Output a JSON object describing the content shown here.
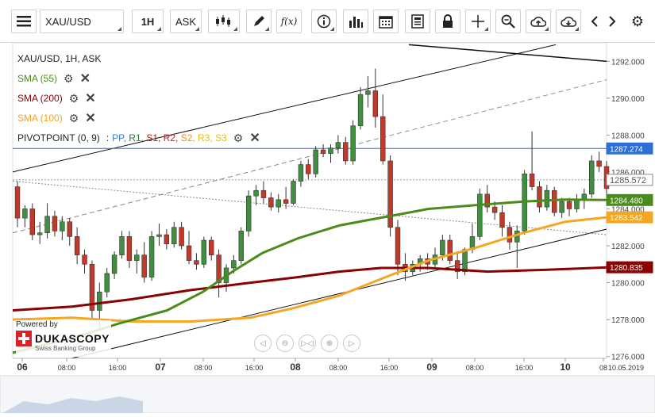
{
  "toolbar": {
    "symbol": "XAU/USD",
    "timeframe": "1H",
    "side": "ASK",
    "fx_label": "f(x)"
  },
  "legend": {
    "title": "XAU/USD, 1H, ASK",
    "sma55": "SMA (55)",
    "sma200": "SMA (200)",
    "sma100": "SMA (100)",
    "pivot": "PIVOTPOINT (0, 9)",
    "pivot_sep": ":",
    "pivot_items": [
      {
        "label": "PP,",
        "color": "#3a7bd5"
      },
      {
        "label": "R1,",
        "color": "#2e7d32"
      },
      {
        "label": "S1,",
        "color": "#8b1a1a"
      },
      {
        "label": "R2,",
        "color": "#c62828"
      },
      {
        "label": "S2,",
        "color": "#e69500"
      },
      {
        "label": "R3,",
        "color": "#e6c300"
      },
      {
        "label": "S3",
        "color": "#e6c300"
      }
    ],
    "colors": {
      "sma55": "#4a8c1c",
      "sma200": "#8b0000",
      "sma100": "#f5a623"
    }
  },
  "branding": {
    "powered_by": "Powered by",
    "name": "DUKASCOPY",
    "sub": "Swiss Banking Group"
  },
  "chart_data": {
    "type": "candlestick",
    "symbol": "XAU/USD",
    "timeframe": "1H",
    "y_ticks": [
      1276.0,
      1278.0,
      1280.0,
      1282.0,
      1284.0,
      1286.0,
      1288.0,
      1290.0,
      1292.0
    ],
    "ylim": [
      1275.9,
      1293.0
    ],
    "x_ticks": [
      "06",
      "08:00",
      "16:00",
      "07",
      "08:00",
      "16:00",
      "08",
      "08:00",
      "16:00",
      "09",
      "08:00",
      "16:00",
      "10",
      "08"
    ],
    "x_date_label": "10.05.2019",
    "price_labels": [
      {
        "value": 1287.274,
        "text": "1287.274",
        "color": "#2e6fd6"
      },
      {
        "value": 1285.572,
        "text": "1285.572",
        "color": "#8a8a8a"
      },
      {
        "value": 1284.48,
        "text": "1284.480",
        "color": "#4a8c1c"
      },
      {
        "value": 1283.542,
        "text": "1283.542",
        "color": "#f5a623"
      },
      {
        "value": 1280.835,
        "text": "1280.835",
        "color": "#8b0000"
      }
    ],
    "candles": [
      [
        1285.2,
        1285.5,
        1283.0,
        1283.5
      ],
      [
        1283.5,
        1284.2,
        1283.0,
        1284.0
      ],
      [
        1284.0,
        1284.3,
        1282.3,
        1282.6
      ],
      [
        1282.6,
        1283.3,
        1282.1,
        1282.7
      ],
      [
        1282.7,
        1284.3,
        1282.4,
        1283.6
      ],
      [
        1283.6,
        1283.9,
        1282.5,
        1282.8
      ],
      [
        1282.8,
        1283.6,
        1282.3,
        1283.3
      ],
      [
        1283.3,
        1283.5,
        1282.0,
        1282.5
      ],
      [
        1282.5,
        1283.0,
        1281.0,
        1281.5
      ],
      [
        1281.5,
        1281.8,
        1280.5,
        1281.0
      ],
      [
        1281.0,
        1281.2,
        1278.0,
        1278.5
      ],
      [
        1278.5,
        1280.0,
        1277.5,
        1279.5
      ],
      [
        1279.5,
        1280.8,
        1279.2,
        1280.5
      ],
      [
        1280.5,
        1281.7,
        1280.2,
        1281.5
      ],
      [
        1281.5,
        1282.8,
        1281.3,
        1282.5
      ],
      [
        1282.5,
        1282.8,
        1280.8,
        1281.2
      ],
      [
        1281.2,
        1281.8,
        1280.5,
        1281.5
      ],
      [
        1281.5,
        1282.2,
        1280.0,
        1280.3
      ],
      [
        1280.3,
        1282.8,
        1280.1,
        1282.5
      ],
      [
        1282.5,
        1283.2,
        1282.0,
        1282.6
      ],
      [
        1282.6,
        1282.9,
        1281.8,
        1282.1
      ],
      [
        1282.1,
        1283.3,
        1281.9,
        1283.0
      ],
      [
        1283.0,
        1283.3,
        1281.8,
        1282.0
      ],
      [
        1282.0,
        1282.8,
        1281.0,
        1281.2
      ],
      [
        1281.2,
        1281.6,
        1280.7,
        1281.0
      ],
      [
        1281.0,
        1282.5,
        1280.8,
        1282.3
      ],
      [
        1282.3,
        1282.5,
        1281.2,
        1281.5
      ],
      [
        1281.5,
        1281.8,
        1279.2,
        1280.0
      ],
      [
        1280.0,
        1281.0,
        1279.5,
        1280.8
      ],
      [
        1280.8,
        1281.5,
        1280.5,
        1281.2
      ],
      [
        1281.2,
        1283.0,
        1281.0,
        1282.8
      ],
      [
        1282.8,
        1285.0,
        1282.5,
        1284.7
      ],
      [
        1284.7,
        1285.3,
        1284.2,
        1285.0
      ],
      [
        1285.0,
        1285.5,
        1284.3,
        1284.6
      ],
      [
        1284.6,
        1284.9,
        1283.9,
        1284.1
      ],
      [
        1284.1,
        1284.8,
        1283.8,
        1284.5
      ],
      [
        1284.5,
        1285.2,
        1284.0,
        1284.3
      ],
      [
        1284.3,
        1285.6,
        1284.2,
        1285.5
      ],
      [
        1285.5,
        1286.6,
        1285.2,
        1286.4
      ],
      [
        1286.4,
        1286.7,
        1285.6,
        1285.9
      ],
      [
        1285.9,
        1287.4,
        1285.7,
        1287.2
      ],
      [
        1287.2,
        1287.5,
        1286.8,
        1287.0
      ],
      [
        1287.0,
        1287.5,
        1286.5,
        1287.3
      ],
      [
        1287.3,
        1288.0,
        1287.0,
        1287.6
      ],
      [
        1287.6,
        1287.9,
        1286.4,
        1286.6
      ],
      [
        1286.6,
        1288.8,
        1286.4,
        1288.5
      ],
      [
        1288.5,
        1290.6,
        1288.3,
        1290.2
      ],
      [
        1290.2,
        1291.2,
        1289.5,
        1290.4
      ],
      [
        1290.4,
        1291.6,
        1288.4,
        1289.0
      ],
      [
        1289.0,
        1290.2,
        1286.4,
        1286.6
      ],
      [
        1286.6,
        1286.9,
        1282.5,
        1283.0
      ],
      [
        1283.0,
        1283.4,
        1280.4,
        1281.0
      ],
      [
        1281.0,
        1281.6,
        1280.1,
        1280.6
      ],
      [
        1280.6,
        1281.2,
        1280.4,
        1281.0
      ],
      [
        1281.0,
        1281.5,
        1280.6,
        1281.3
      ],
      [
        1281.3,
        1281.6,
        1280.7,
        1281.0
      ],
      [
        1281.0,
        1281.9,
        1280.8,
        1281.5
      ],
      [
        1281.5,
        1282.6,
        1281.2,
        1282.3
      ],
      [
        1282.3,
        1282.6,
        1281.0,
        1281.2
      ],
      [
        1281.2,
        1281.7,
        1280.2,
        1280.6
      ],
      [
        1280.6,
        1281.9,
        1280.4,
        1281.8
      ],
      [
        1281.8,
        1283.2,
        1281.6,
        1282.5
      ],
      [
        1282.5,
        1285.1,
        1282.3,
        1284.8
      ],
      [
        1284.8,
        1285.3,
        1283.8,
        1284.1
      ],
      [
        1284.1,
        1284.4,
        1283.4,
        1283.8
      ],
      [
        1283.8,
        1284.2,
        1282.5,
        1283.0
      ],
      [
        1283.0,
        1283.3,
        1281.8,
        1282.2
      ],
      [
        1282.2,
        1283.1,
        1280.8,
        1282.8
      ],
      [
        1282.8,
        1286.1,
        1282.6,
        1285.9
      ],
      [
        1285.9,
        1288.2,
        1285.0,
        1285.2
      ],
      [
        1285.2,
        1285.5,
        1283.8,
        1284.1
      ],
      [
        1284.1,
        1285.3,
        1283.9,
        1285.0
      ],
      [
        1285.0,
        1285.2,
        1283.6,
        1283.8
      ],
      [
        1283.8,
        1284.6,
        1283.5,
        1284.4
      ],
      [
        1284.4,
        1284.6,
        1283.6,
        1284.0
      ],
      [
        1284.0,
        1284.8,
        1283.8,
        1284.5
      ],
      [
        1284.5,
        1285.1,
        1284.0,
        1284.8
      ],
      [
        1284.8,
        1286.9,
        1284.6,
        1286.6
      ],
      [
        1286.6,
        1287.1,
        1286.0,
        1286.3
      ],
      [
        1286.3,
        1286.6,
        1284.4,
        1285.1
      ]
    ],
    "sma55": [
      [
        0,
        1276.2
      ],
      [
        0.1,
        1277.0
      ],
      [
        0.18,
        1277.8
      ],
      [
        0.26,
        1278.5
      ],
      [
        0.32,
        1279.5
      ],
      [
        0.37,
        1280.6
      ],
      [
        0.42,
        1281.6
      ],
      [
        0.48,
        1282.4
      ],
      [
        0.55,
        1283.1
      ],
      [
        0.6,
        1283.4
      ],
      [
        0.65,
        1283.7
      ],
      [
        0.7,
        1284.0
      ],
      [
        0.78,
        1284.2
      ],
      [
        0.86,
        1284.4
      ],
      [
        0.93,
        1284.5
      ],
      [
        1.0,
        1284.48
      ]
    ],
    "sma100": [
      [
        0,
        1278.0
      ],
      [
        0.1,
        1278.1
      ],
      [
        0.2,
        1277.9
      ],
      [
        0.3,
        1277.9
      ],
      [
        0.4,
        1278.1
      ],
      [
        0.47,
        1278.6
      ],
      [
        0.55,
        1279.3
      ],
      [
        0.62,
        1280.2
      ],
      [
        0.7,
        1281.2
      ],
      [
        0.78,
        1281.9
      ],
      [
        0.86,
        1282.7
      ],
      [
        0.93,
        1283.3
      ],
      [
        1.0,
        1283.54
      ]
    ],
    "sma200": [
      [
        0,
        1278.5
      ],
      [
        0.1,
        1278.7
      ],
      [
        0.2,
        1279.1
      ],
      [
        0.3,
        1279.6
      ],
      [
        0.4,
        1280.0
      ],
      [
        0.48,
        1280.3
      ],
      [
        0.55,
        1280.6
      ],
      [
        0.62,
        1280.8
      ],
      [
        0.7,
        1280.8
      ],
      [
        0.8,
        1280.6
      ],
      [
        0.9,
        1280.7
      ],
      [
        1.0,
        1280.83
      ]
    ],
    "grid": false,
    "legend_position": "top-left"
  }
}
